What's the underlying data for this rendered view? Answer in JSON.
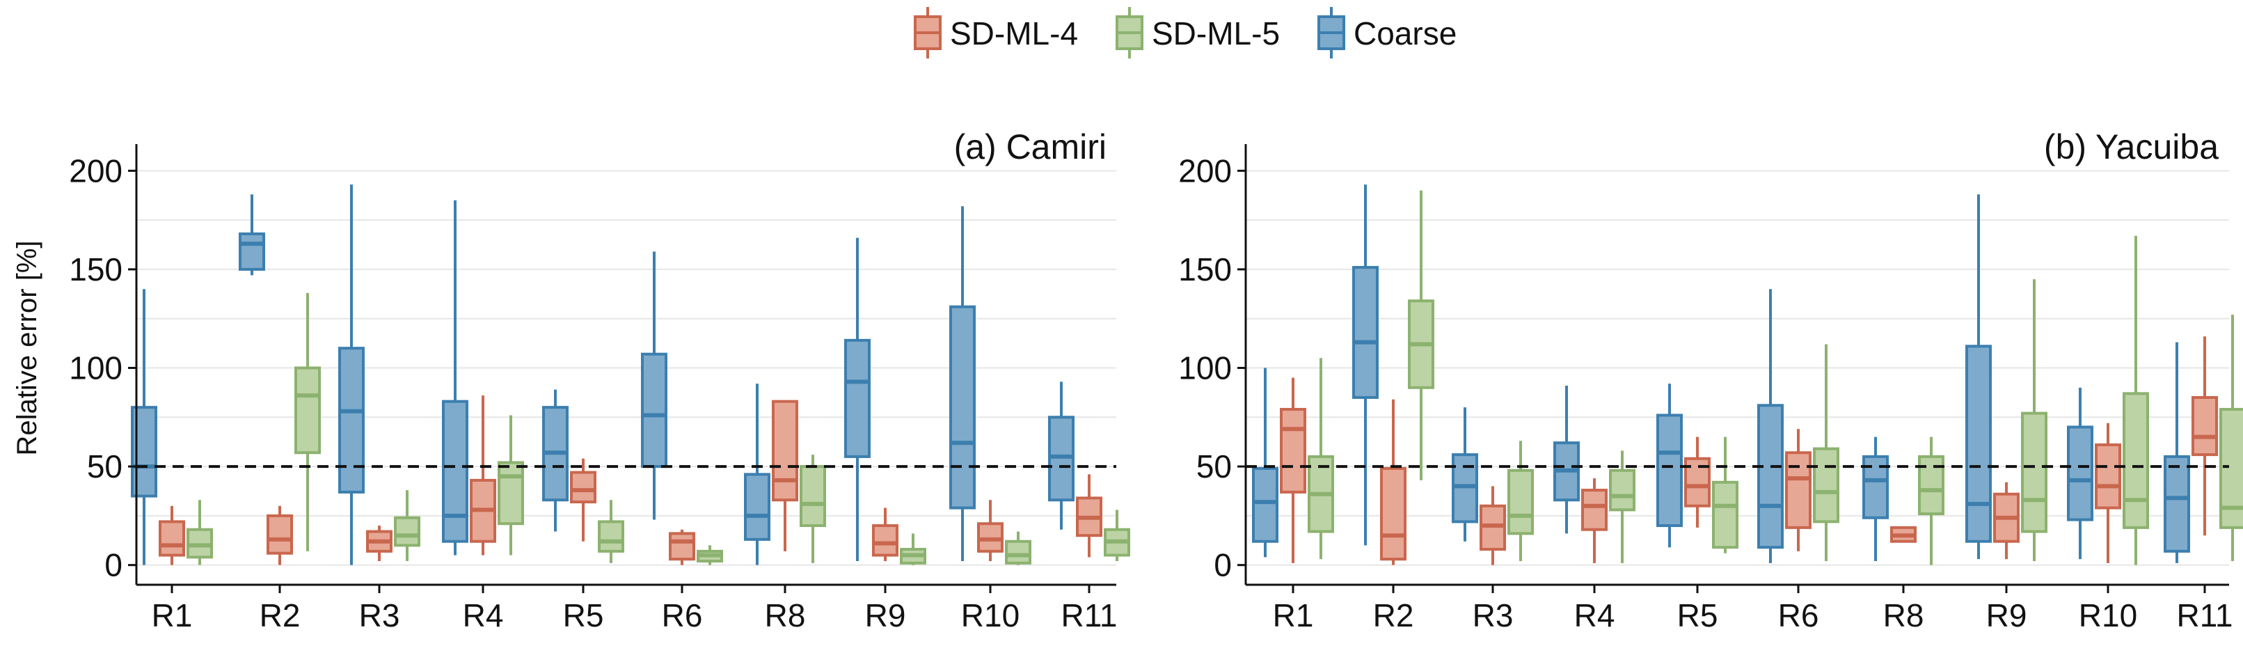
{
  "chart_data": {
    "type": "boxplot",
    "ylabel": "Relative error [%]",
    "reference_line": 50,
    "ylim": [
      -10,
      210
    ],
    "yticks": [
      0,
      50,
      100,
      150,
      200
    ],
    "legend": {
      "position": "top-center",
      "entries": [
        {
          "name": "SD-ML-4",
          "fill": "#E7A795",
          "stroke": "#C9674E"
        },
        {
          "name": "SD-ML-5",
          "fill": "#BCD3A5",
          "stroke": "#8CB26F"
        },
        {
          "name": "Coarse",
          "fill": "#7EABCC",
          "stroke": "#3C7FAF"
        }
      ]
    },
    "panels": [
      {
        "title": "(a) Camiri",
        "categories": [
          {
            "label": "R1",
            "boxes": [
              {
                "series": "Coarse",
                "whisker_low": 0,
                "q1": 35,
                "median": 50,
                "q3": 80,
                "whisker_high": 140
              },
              {
                "series": "SD-ML-4",
                "whisker_low": 0,
                "q1": 5,
                "median": 10,
                "q3": 22,
                "whisker_high": 30
              },
              {
                "series": "SD-ML-5",
                "whisker_low": 0,
                "q1": 4,
                "median": 10,
                "q3": 18,
                "whisker_high": 33
              }
            ]
          },
          {
            "label": "R2",
            "boxes": [
              {
                "series": "Coarse",
                "whisker_low": 147,
                "q1": 150,
                "median": 163,
                "q3": 168,
                "whisker_high": 188
              },
              {
                "series": "SD-ML-4",
                "whisker_low": 0,
                "q1": 6,
                "median": 13,
                "q3": 25,
                "whisker_high": 30
              },
              {
                "series": "SD-ML-5",
                "whisker_low": 7,
                "q1": 57,
                "median": 86,
                "q3": 100,
                "whisker_high": 138
              }
            ]
          },
          {
            "label": "R3",
            "boxes": [
              {
                "series": "Coarse",
                "whisker_low": 0,
                "q1": 37,
                "median": 78,
                "q3": 110,
                "whisker_high": 193
              },
              {
                "series": "SD-ML-4",
                "whisker_low": 2,
                "q1": 7,
                "median": 12,
                "q3": 17,
                "whisker_high": 20
              },
              {
                "series": "SD-ML-5",
                "whisker_low": 2,
                "q1": 10,
                "median": 15,
                "q3": 24,
                "whisker_high": 38
              }
            ]
          },
          {
            "label": "R4",
            "boxes": [
              {
                "series": "Coarse",
                "whisker_low": 5,
                "q1": 12,
                "median": 25,
                "q3": 83,
                "whisker_high": 185
              },
              {
                "series": "SD-ML-4",
                "whisker_low": 5,
                "q1": 12,
                "median": 28,
                "q3": 43,
                "whisker_high": 86
              },
              {
                "series": "SD-ML-5",
                "whisker_low": 5,
                "q1": 21,
                "median": 45,
                "q3": 52,
                "whisker_high": 76
              }
            ]
          },
          {
            "label": "R5",
            "boxes": [
              {
                "series": "Coarse",
                "whisker_low": 17,
                "q1": 33,
                "median": 57,
                "q3": 80,
                "whisker_high": 89
              },
              {
                "series": "SD-ML-4",
                "whisker_low": 12,
                "q1": 32,
                "median": 38,
                "q3": 47,
                "whisker_high": 54
              },
              {
                "series": "SD-ML-5",
                "whisker_low": 1,
                "q1": 7,
                "median": 12,
                "q3": 22,
                "whisker_high": 33
              }
            ]
          },
          {
            "label": "R6",
            "boxes": [
              {
                "series": "Coarse",
                "whisker_low": 23,
                "q1": 50,
                "median": 76,
                "q3": 107,
                "whisker_high": 159
              },
              {
                "series": "SD-ML-4",
                "whisker_low": 0,
                "q1": 3,
                "median": 12,
                "q3": 16,
                "whisker_high": 18
              },
              {
                "series": "SD-ML-5",
                "whisker_low": 0,
                "q1": 2,
                "median": 5,
                "q3": 7,
                "whisker_high": 10
              }
            ]
          },
          {
            "label": "R8",
            "boxes": [
              {
                "series": "Coarse",
                "whisker_low": 0,
                "q1": 13,
                "median": 25,
                "q3": 46,
                "whisker_high": 92
              },
              {
                "series": "SD-ML-4",
                "whisker_low": 7,
                "q1": 33,
                "median": 43,
                "q3": 83,
                "whisker_high": 83
              },
              {
                "series": "SD-ML-5",
                "whisker_low": 1,
                "q1": 20,
                "median": 31,
                "q3": 50,
                "whisker_high": 56
              }
            ]
          },
          {
            "label": "R9",
            "boxes": [
              {
                "series": "Coarse",
                "whisker_low": 2,
                "q1": 55,
                "median": 93,
                "q3": 114,
                "whisker_high": 166
              },
              {
                "series": "SD-ML-4",
                "whisker_low": 2,
                "q1": 5,
                "median": 11,
                "q3": 20,
                "whisker_high": 29
              },
              {
                "series": "SD-ML-5",
                "whisker_low": 0,
                "q1": 1,
                "median": 5,
                "q3": 8,
                "whisker_high": 16
              }
            ]
          },
          {
            "label": "R10",
            "boxes": [
              {
                "series": "Coarse",
                "whisker_low": 2,
                "q1": 29,
                "median": 62,
                "q3": 131,
                "whisker_high": 182
              },
              {
                "series": "SD-ML-4",
                "whisker_low": 2,
                "q1": 7,
                "median": 13,
                "q3": 21,
                "whisker_high": 33
              },
              {
                "series": "SD-ML-5",
                "whisker_low": 0,
                "q1": 1,
                "median": 5,
                "q3": 12,
                "whisker_high": 17
              }
            ]
          },
          {
            "label": "R11",
            "boxes": [
              {
                "series": "Coarse",
                "whisker_low": 18,
                "q1": 33,
                "median": 55,
                "q3": 75,
                "whisker_high": 93
              },
              {
                "series": "SD-ML-4",
                "whisker_low": 4,
                "q1": 15,
                "median": 24,
                "q3": 34,
                "whisker_high": 46
              },
              {
                "series": "SD-ML-5",
                "whisker_low": 2,
                "q1": 5,
                "median": 12,
                "q3": 18,
                "whisker_high": 28
              }
            ]
          }
        ]
      },
      {
        "title": "(b) Yacuiba",
        "categories": [
          {
            "label": "R1",
            "boxes": [
              {
                "series": "Coarse",
                "whisker_low": 4,
                "q1": 12,
                "median": 32,
                "q3": 49,
                "whisker_high": 100
              },
              {
                "series": "SD-ML-4",
                "whisker_low": 1,
                "q1": 37,
                "median": 69,
                "q3": 79,
                "whisker_high": 95
              },
              {
                "series": "SD-ML-5",
                "whisker_low": 3,
                "q1": 17,
                "median": 36,
                "q3": 55,
                "whisker_high": 105
              }
            ]
          },
          {
            "label": "R2",
            "boxes": [
              {
                "series": "Coarse",
                "whisker_low": 10,
                "q1": 85,
                "median": 113,
                "q3": 151,
                "whisker_high": 193
              },
              {
                "series": "SD-ML-4",
                "whisker_low": 0,
                "q1": 3,
                "median": 15,
                "q3": 49,
                "whisker_high": 84
              },
              {
                "series": "SD-ML-5",
                "whisker_low": 43,
                "q1": 90,
                "median": 112,
                "q3": 134,
                "whisker_high": 190
              }
            ]
          },
          {
            "label": "R3",
            "boxes": [
              {
                "series": "Coarse",
                "whisker_low": 12,
                "q1": 22,
                "median": 40,
                "q3": 56,
                "whisker_high": 80
              },
              {
                "series": "SD-ML-4",
                "whisker_low": 0,
                "q1": 8,
                "median": 20,
                "q3": 30,
                "whisker_high": 40
              },
              {
                "series": "SD-ML-5",
                "whisker_low": 2,
                "q1": 16,
                "median": 25,
                "q3": 48,
                "whisker_high": 63
              }
            ]
          },
          {
            "label": "R4",
            "boxes": [
              {
                "series": "Coarse",
                "whisker_low": 16,
                "q1": 33,
                "median": 48,
                "q3": 62,
                "whisker_high": 91
              },
              {
                "series": "SD-ML-4",
                "whisker_low": 1,
                "q1": 18,
                "median": 30,
                "q3": 38,
                "whisker_high": 44
              },
              {
                "series": "SD-ML-5",
                "whisker_low": 1,
                "q1": 28,
                "median": 35,
                "q3": 48,
                "whisker_high": 58
              }
            ]
          },
          {
            "label": "R5",
            "boxes": [
              {
                "series": "Coarse",
                "whisker_low": 9,
                "q1": 20,
                "median": 57,
                "q3": 76,
                "whisker_high": 92
              },
              {
                "series": "SD-ML-4",
                "whisker_low": 19,
                "q1": 30,
                "median": 40,
                "q3": 54,
                "whisker_high": 65
              },
              {
                "series": "SD-ML-5",
                "whisker_low": 6,
                "q1": 9,
                "median": 30,
                "q3": 42,
                "whisker_high": 65
              }
            ]
          },
          {
            "label": "R6",
            "boxes": [
              {
                "series": "Coarse",
                "whisker_low": 1,
                "q1": 9,
                "median": 30,
                "q3": 81,
                "whisker_high": 140
              },
              {
                "series": "SD-ML-4",
                "whisker_low": 7,
                "q1": 19,
                "median": 44,
                "q3": 57,
                "whisker_high": 69
              },
              {
                "series": "SD-ML-5",
                "whisker_low": 2,
                "q1": 22,
                "median": 37,
                "q3": 59,
                "whisker_high": 112
              }
            ]
          },
          {
            "label": "R8",
            "boxes": [
              {
                "series": "Coarse",
                "whisker_low": 2,
                "q1": 24,
                "median": 43,
                "q3": 55,
                "whisker_high": 65
              },
              {
                "series": "SD-ML-4",
                "whisker_low": 12,
                "q1": 12,
                "median": 15,
                "q3": 19,
                "whisker_high": 19
              },
              {
                "series": "SD-ML-5",
                "whisker_low": 0,
                "q1": 26,
                "median": 38,
                "q3": 55,
                "whisker_high": 65
              }
            ]
          },
          {
            "label": "R9",
            "boxes": [
              {
                "series": "Coarse",
                "whisker_low": 3,
                "q1": 12,
                "median": 31,
                "q3": 111,
                "whisker_high": 188
              },
              {
                "series": "SD-ML-4",
                "whisker_low": 3,
                "q1": 12,
                "median": 24,
                "q3": 36,
                "whisker_high": 42
              },
              {
                "series": "SD-ML-5",
                "whisker_low": 2,
                "q1": 17,
                "median": 33,
                "q3": 77,
                "whisker_high": 145
              }
            ]
          },
          {
            "label": "R10",
            "boxes": [
              {
                "series": "Coarse",
                "whisker_low": 3,
                "q1": 23,
                "median": 43,
                "q3": 70,
                "whisker_high": 90
              },
              {
                "series": "SD-ML-4",
                "whisker_low": 1,
                "q1": 29,
                "median": 40,
                "q3": 61,
                "whisker_high": 72
              },
              {
                "series": "SD-ML-5",
                "whisker_low": 0,
                "q1": 19,
                "median": 33,
                "q3": 87,
                "whisker_high": 167
              }
            ]
          },
          {
            "label": "R11",
            "boxes": [
              {
                "series": "Coarse",
                "whisker_low": 1,
                "q1": 7,
                "median": 34,
                "q3": 55,
                "whisker_high": 113
              },
              {
                "series": "SD-ML-4",
                "whisker_low": 15,
                "q1": 56,
                "median": 65,
                "q3": 85,
                "whisker_high": 116
              },
              {
                "series": "SD-ML-5",
                "whisker_low": 2,
                "q1": 19,
                "median": 29,
                "q3": 79,
                "whisker_high": 127
              }
            ]
          }
        ]
      }
    ]
  }
}
